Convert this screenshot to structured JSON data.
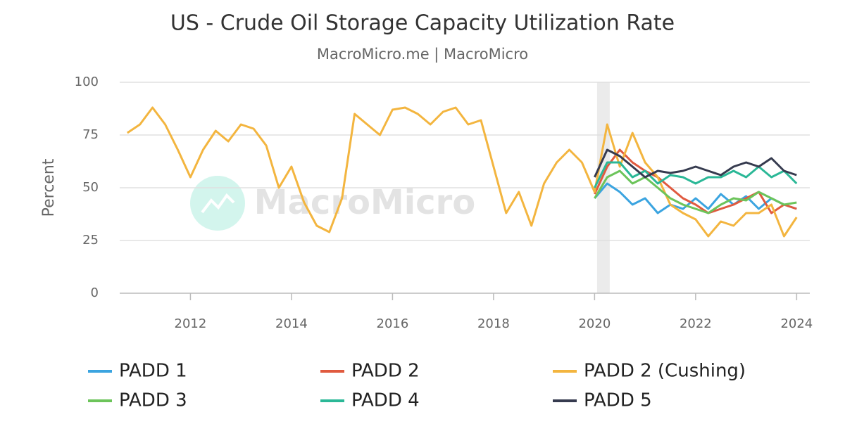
{
  "chart_data": {
    "type": "line",
    "title": "US - Crude Oil Storage Capacity Utilization Rate",
    "subtitle": "MacroMicro.me | MacroMicro",
    "watermark": "MacroMicro",
    "y_label": "Percent",
    "x": [
      2010.75,
      2011,
      2011.25,
      2011.5,
      2011.75,
      2012,
      2012.25,
      2012.5,
      2012.75,
      2013,
      2013.25,
      2013.5,
      2013.75,
      2014,
      2014.25,
      2014.5,
      2014.75,
      2015,
      2015.25,
      2015.5,
      2015.75,
      2016,
      2016.25,
      2016.5,
      2016.75,
      2017,
      2017.25,
      2017.5,
      2017.75,
      2018,
      2018.25,
      2018.5,
      2018.75,
      2019,
      2019.25,
      2019.5,
      2019.75,
      2020,
      2020.25,
      2020.5,
      2020.75,
      2021,
      2021.25,
      2021.5,
      2021.75,
      2022,
      2022.25,
      2022.5,
      2022.75,
      2023,
      2023.25,
      2023.5,
      2023.75,
      2024
    ],
    "series": [
      {
        "name": "PADD 1",
        "color": "#3ba4e0",
        "values": [
          null,
          null,
          null,
          null,
          null,
          null,
          null,
          null,
          null,
          null,
          null,
          null,
          null,
          null,
          null,
          null,
          null,
          null,
          null,
          null,
          null,
          null,
          null,
          null,
          null,
          null,
          null,
          null,
          null,
          null,
          null,
          null,
          null,
          null,
          null,
          null,
          null,
          45,
          52,
          48,
          42,
          45,
          38,
          42,
          40,
          45,
          40,
          47,
          42,
          46,
          40,
          45,
          42,
          40
        ]
      },
      {
        "name": "PADD 2",
        "color": "#e05a3f",
        "values": [
          null,
          null,
          null,
          null,
          null,
          null,
          null,
          null,
          null,
          null,
          null,
          null,
          null,
          null,
          null,
          null,
          null,
          null,
          null,
          null,
          null,
          null,
          null,
          null,
          null,
          null,
          null,
          null,
          null,
          null,
          null,
          null,
          null,
          null,
          null,
          null,
          null,
          47,
          60,
          68,
          62,
          58,
          55,
          50,
          45,
          42,
          38,
          40,
          42,
          45,
          48,
          38,
          42,
          40
        ]
      },
      {
        "name": "PADD 2 (Cushing)",
        "color": "#f3b53f",
        "values": [
          76,
          80,
          88,
          80,
          68,
          55,
          68,
          77,
          72,
          80,
          78,
          70,
          50,
          60,
          43,
          32,
          29,
          45,
          85,
          80,
          75,
          87,
          88,
          85,
          80,
          86,
          88,
          80,
          82,
          60,
          38,
          48,
          32,
          52,
          62,
          68,
          62,
          48,
          80,
          60,
          76,
          62,
          55,
          42,
          38,
          35,
          27,
          34,
          32,
          38,
          38,
          42,
          27,
          36
        ]
      },
      {
        "name": "PADD 3",
        "color": "#6cc45a",
        "values": [
          null,
          null,
          null,
          null,
          null,
          null,
          null,
          null,
          null,
          null,
          null,
          null,
          null,
          null,
          null,
          null,
          null,
          null,
          null,
          null,
          null,
          null,
          null,
          null,
          null,
          null,
          null,
          null,
          null,
          null,
          null,
          null,
          null,
          null,
          null,
          null,
          null,
          45,
          55,
          58,
          52,
          55,
          50,
          45,
          42,
          40,
          38,
          42,
          45,
          44,
          48,
          45,
          42,
          43
        ]
      },
      {
        "name": "PADD 4",
        "color": "#2bb897",
        "values": [
          null,
          null,
          null,
          null,
          null,
          null,
          null,
          null,
          null,
          null,
          null,
          null,
          null,
          null,
          null,
          null,
          null,
          null,
          null,
          null,
          null,
          null,
          null,
          null,
          null,
          null,
          null,
          null,
          null,
          null,
          null,
          null,
          null,
          null,
          null,
          null,
          null,
          50,
          62,
          62,
          55,
          58,
          52,
          56,
          55,
          52,
          55,
          55,
          58,
          55,
          60,
          55,
          58,
          52
        ]
      },
      {
        "name": "PADD 5",
        "color": "#363b4f",
        "values": [
          null,
          null,
          null,
          null,
          null,
          null,
          null,
          null,
          null,
          null,
          null,
          null,
          null,
          null,
          null,
          null,
          null,
          null,
          null,
          null,
          null,
          null,
          null,
          null,
          null,
          null,
          null,
          null,
          null,
          null,
          null,
          null,
          null,
          null,
          null,
          null,
          null,
          55,
          68,
          65,
          60,
          55,
          58,
          57,
          58,
          60,
          58,
          56,
          60,
          62,
          60,
          64,
          58,
          56
        ]
      }
    ],
    "highlight_x": [
      2020.05,
      2020.3
    ],
    "xlim": [
      2010.6,
      2024.26
    ],
    "xticks": [
      2012,
      2014,
      2016,
      2018,
      2020,
      2022,
      2024
    ],
    "ylim": [
      0,
      100
    ],
    "yticks": [
      0,
      25,
      50,
      75,
      100
    ],
    "grid": true
  }
}
